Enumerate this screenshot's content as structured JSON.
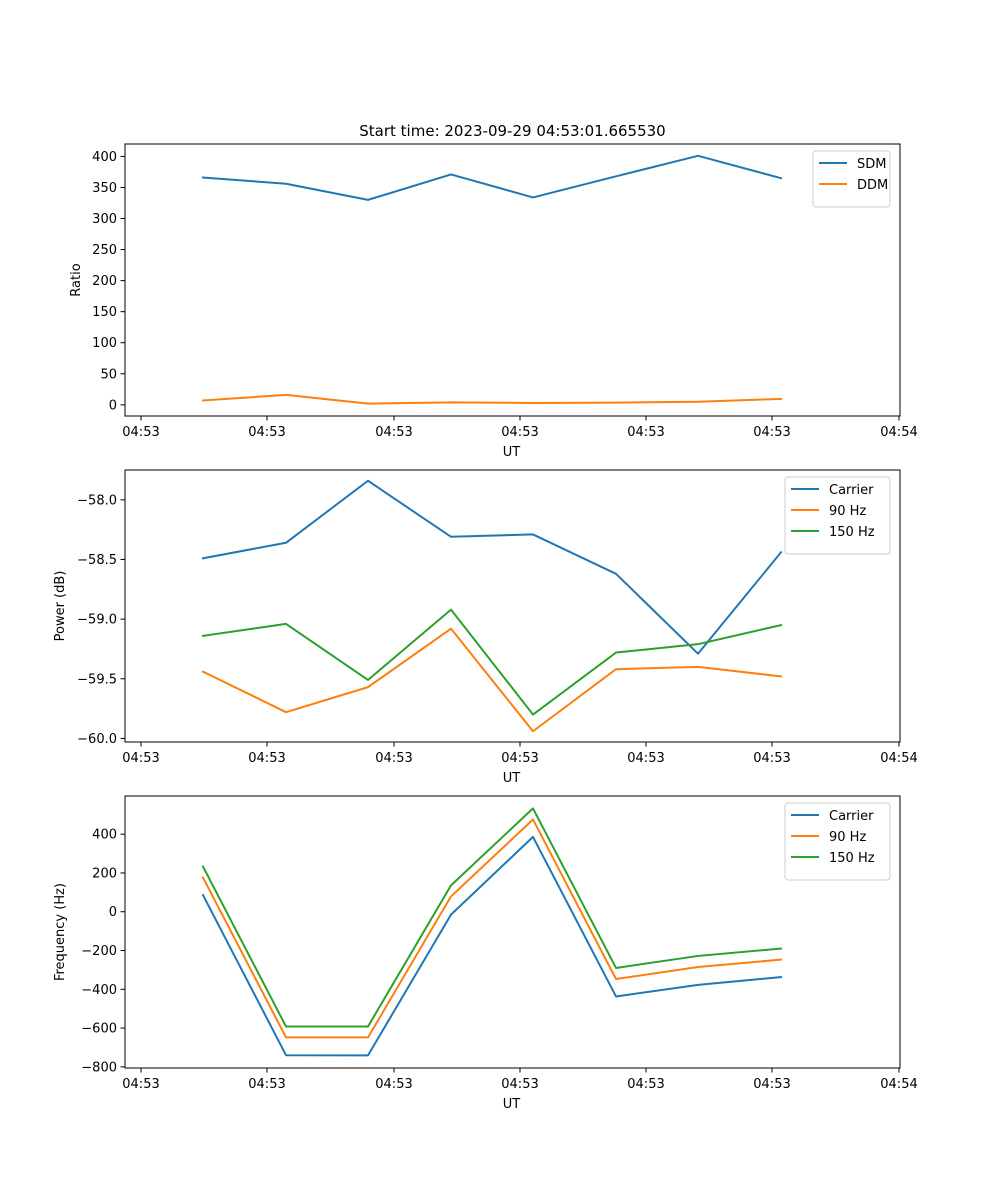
{
  "chart_data": [
    {
      "type": "line",
      "title": "Start time: 2023-09-29 04:53:01.665530",
      "xlabel": "UT",
      "ylabel": "Ratio",
      "xtick_labels": [
        "04:53",
        "04:53",
        "04:53",
        "04:53",
        "04:53",
        "04:53",
        "04:54"
      ],
      "ylim": [
        -18,
        420
      ],
      "yticks": [
        0,
        50,
        100,
        150,
        200,
        250,
        300,
        350,
        400
      ],
      "ytick_labels": [
        "0",
        "50",
        "100",
        "150",
        "200",
        "250",
        "300",
        "350",
        "400"
      ],
      "legend": "top-right",
      "series": [
        {
          "name": "SDM",
          "color": "#1f77b4",
          "values": [
            366,
            356,
            330,
            371,
            334,
            368,
            401,
            365
          ]
        },
        {
          "name": "DDM",
          "color": "#ff7f0e",
          "values": [
            7,
            16,
            2,
            4,
            3,
            3.5,
            5,
            9.5
          ]
        }
      ]
    },
    {
      "type": "line",
      "title": "",
      "xlabel": "UT",
      "ylabel": "Power (dB)",
      "xtick_labels": [
        "04:53",
        "04:53",
        "04:53",
        "04:53",
        "04:53",
        "04:53",
        "04:54"
      ],
      "ylim": [
        -60.03,
        -57.75
      ],
      "yticks": [
        -60.0,
        -59.5,
        -59.0,
        -58.5,
        -58.0
      ],
      "ytick_labels": [
        "−60.0",
        "−59.5",
        "−59.0",
        "−58.5",
        "−58.0"
      ],
      "legend": "top-right",
      "series": [
        {
          "name": "Carrier",
          "color": "#1f77b4",
          "values": [
            -58.49,
            -58.36,
            -57.84,
            -58.31,
            -58.29,
            -58.62,
            -59.29,
            -58.44
          ]
        },
        {
          "name": "90 Hz",
          "color": "#ff7f0e",
          "values": [
            -59.44,
            -59.78,
            -59.57,
            -59.08,
            -59.94,
            -59.42,
            -59.4,
            -59.48
          ]
        },
        {
          "name": "150 Hz",
          "color": "#2ca02c",
          "values": [
            -59.14,
            -59.04,
            -59.51,
            -58.92,
            -59.8,
            -59.28,
            -59.21,
            -59.05
          ]
        }
      ]
    },
    {
      "type": "line",
      "title": "",
      "xlabel": "UT",
      "ylabel": "Frequency (Hz)",
      "xtick_labels": [
        "04:53",
        "04:53",
        "04:53",
        "04:53",
        "04:53",
        "04:53",
        "04:54"
      ],
      "ylim": [
        -806,
        597
      ],
      "yticks": [
        -800,
        -600,
        -400,
        -200,
        0,
        200,
        400
      ],
      "ytick_labels": [
        "−800",
        "−600",
        "−400",
        "−200",
        "0",
        "200",
        "400"
      ],
      "legend": "top-right",
      "series": [
        {
          "name": "Carrier",
          "color": "#1f77b4",
          "values": [
            86,
            -740,
            -741,
            -15,
            386,
            -437,
            -377,
            -337
          ]
        },
        {
          "name": "90 Hz",
          "color": "#ff7f0e",
          "values": [
            176,
            -648,
            -648,
            79,
            476,
            -347,
            -285,
            -247
          ]
        },
        {
          "name": "150 Hz",
          "color": "#2ca02c",
          "values": [
            233,
            -592,
            -592,
            136,
            533,
            -290,
            -228,
            -190
          ]
        }
      ]
    }
  ]
}
